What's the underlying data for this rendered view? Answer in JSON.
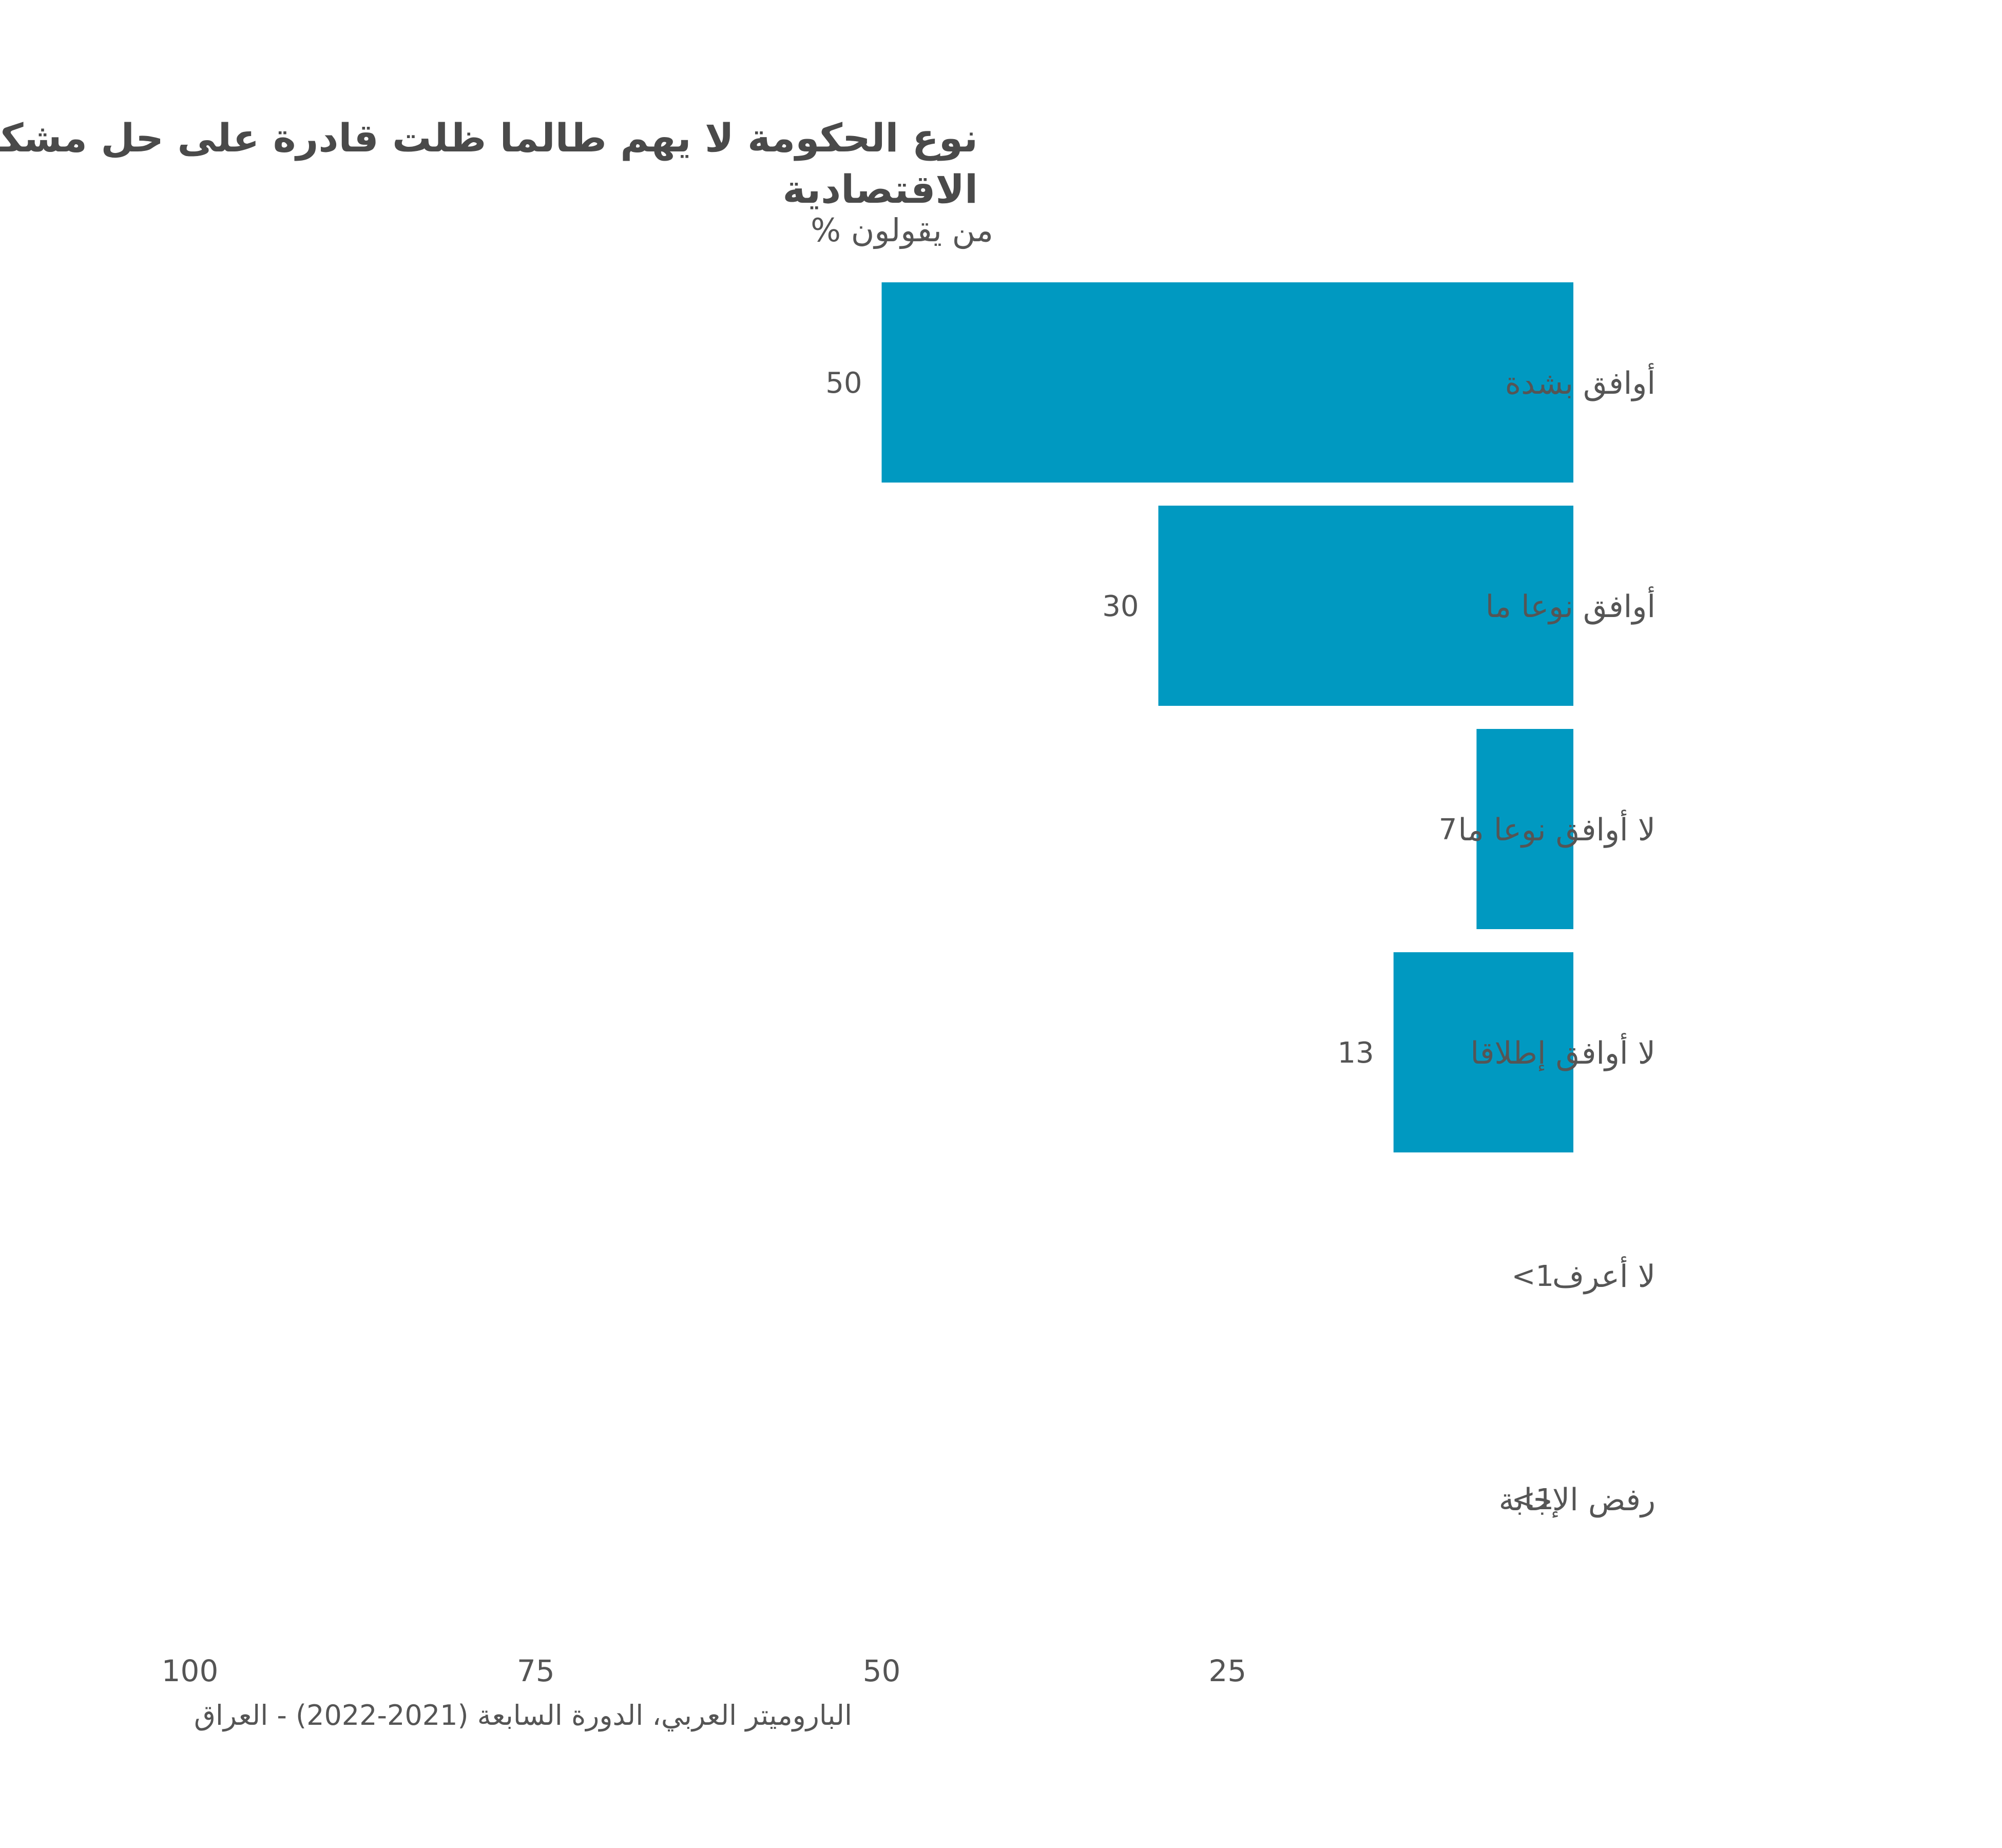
{
  "chart_data": {
    "type": "bar",
    "orientation": "horizontal",
    "title_lines": [
      "نوع الحكومة لا يهم طالما ظلت قادرة على حل مشكلة البلد",
      "الاقتصادية"
    ],
    "subtitle": "% من يقولون",
    "categories": [
      "أوافق بشدة",
      "أوافق نوعا ما",
      "لا أوافق نوعا ما",
      "لا أوافق إطلاقا",
      "لا أعرف",
      "رفض الإجابة"
    ],
    "values": [
      50,
      30,
      7,
      13,
      0.4,
      0.4
    ],
    "value_labels": [
      "50",
      "30",
      "7",
      "13",
      "<1",
      "<1"
    ],
    "xlim": [
      0,
      100
    ],
    "x_ticks": [
      100,
      75,
      50,
      25
    ],
    "x_reversed": true,
    "grid": false,
    "source": "الباروميتر العربي، الدورة السابعة (2021-2022) - العراق",
    "colors": {
      "bar": "#0099c1",
      "text": "#555555",
      "title": "#4a4a4a"
    }
  }
}
